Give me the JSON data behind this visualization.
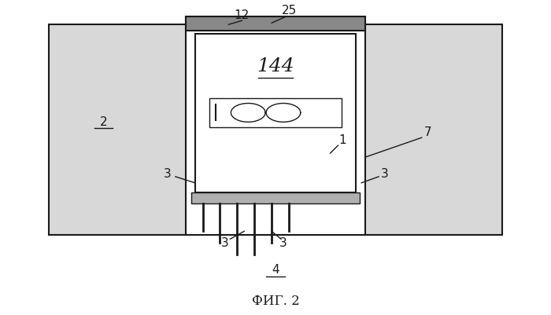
{
  "fig_width": 7.0,
  "fig_height": 4.01,
  "dpi": 100,
  "bg_color": "#ffffff",
  "line_color": "#1a1a1a",
  "caption": "ФИГ. 2",
  "caption_fontsize": 12,
  "road_fill": "#d8d8d8",
  "outer_box_fill": "#ffffff",
  "inner_box_fill": "#ffffff",
  "top_strip_fill": "#888888",
  "base_fill": "#b0b0b0"
}
